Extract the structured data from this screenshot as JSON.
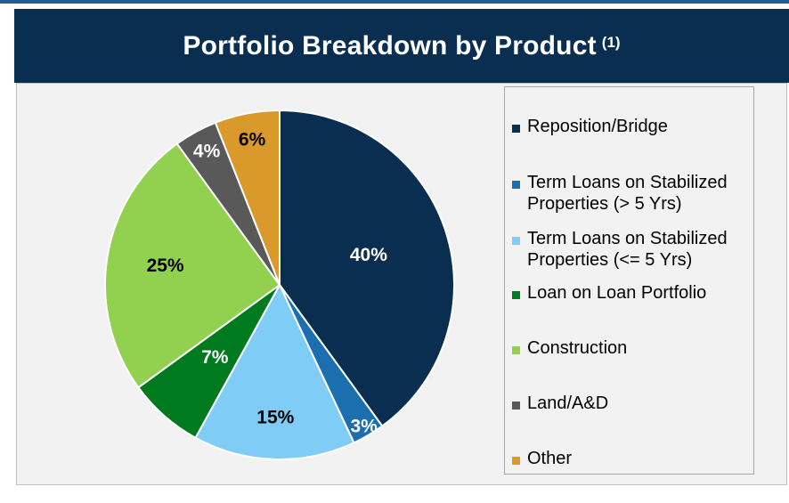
{
  "header": {
    "title": "Portfolio Breakdown by Product",
    "footnote_marker": "(1)"
  },
  "chart_data": {
    "type": "pie",
    "title": "Portfolio Breakdown by Product (1)",
    "legend_position": "right",
    "slices": [
      {
        "label": "Reposition/Bridge",
        "value": 40,
        "display": "40%",
        "color": "#0a2e4f",
        "label_color": "#ffffff"
      },
      {
        "label": "Term Loans on Stabilized Properties (> 5 Yrs)",
        "value": 3,
        "display": "3%",
        "color": "#1b6fae",
        "label_color": "#ffffff"
      },
      {
        "label": "Term Loans on Stabilized Properties (<= 5 Yrs)",
        "value": 15,
        "display": "15%",
        "color": "#7fcdf7",
        "label_color": "#000000"
      },
      {
        "label": "Loan on Loan Portfolio",
        "value": 7,
        "display": "7%",
        "color": "#007a1f",
        "label_color": "#ffffff"
      },
      {
        "label": "Construction",
        "value": 25,
        "display": "25%",
        "color": "#92d050",
        "label_color": "#000000"
      },
      {
        "label": "Land/A&D",
        "value": 4,
        "display": "4%",
        "color": "#595959",
        "label_color": "#ffffff"
      },
      {
        "label": "Other",
        "value": 6,
        "display": "6%",
        "color": "#d99a2b",
        "label_color": "#000000"
      }
    ]
  },
  "legend": {
    "items": [
      {
        "lines": [
          "Reposition/Bridge"
        ],
        "color": "#0a2e4f"
      },
      {
        "lines": [
          "Term Loans on Stabilized",
          "Properties (> 5 Yrs)"
        ],
        "color": "#1b6fae"
      },
      {
        "lines": [
          "Term Loans on Stabilized",
          "Properties (<= 5 Yrs)"
        ],
        "color": "#7fcdf7"
      },
      {
        "lines": [
          "Loan on Loan Portfolio"
        ],
        "color": "#007a1f"
      },
      {
        "lines": [
          "Construction"
        ],
        "color": "#92d050"
      },
      {
        "lines": [
          "Land/A&D"
        ],
        "color": "#595959"
      },
      {
        "lines": [
          "Other"
        ],
        "color": "#d99a2b"
      }
    ]
  }
}
